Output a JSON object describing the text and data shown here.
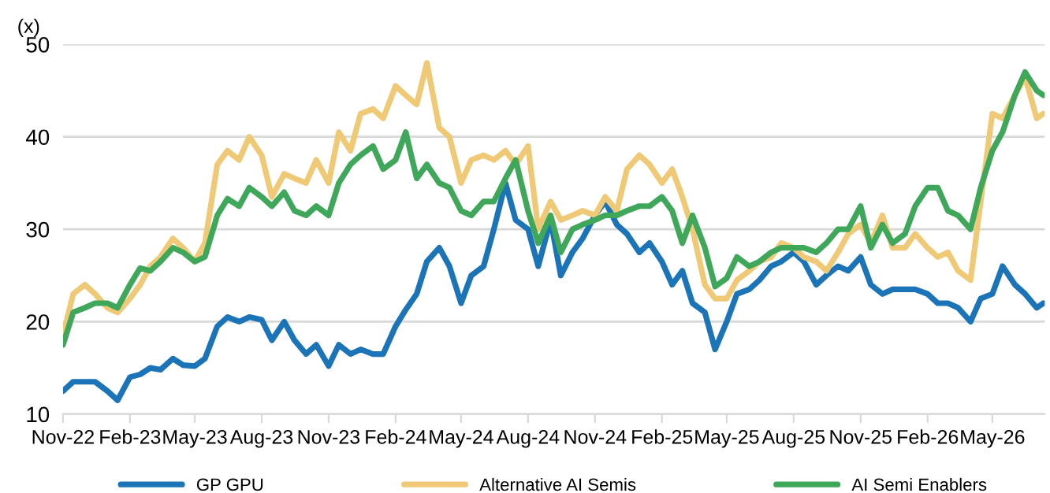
{
  "chart_data": {
    "type": "line",
    "ylabel": "(x)",
    "x": [
      "2022-11-01",
      "2022-11-15",
      "2022-12-01",
      "2022-12-15",
      "2023-01-01",
      "2023-01-15",
      "2023-02-01",
      "2023-02-15",
      "2023-03-01",
      "2023-03-15",
      "2023-04-01",
      "2023-04-15",
      "2023-05-01",
      "2023-05-15",
      "2023-06-01",
      "2023-06-15",
      "2023-07-01",
      "2023-07-15",
      "2023-08-01",
      "2023-08-15",
      "2023-09-01",
      "2023-09-15",
      "2023-10-01",
      "2023-10-15",
      "2023-11-01",
      "2023-11-15",
      "2023-12-01",
      "2023-12-15",
      "2024-01-01",
      "2024-01-15",
      "2024-02-01",
      "2024-02-15",
      "2024-03-01",
      "2024-03-15",
      "2024-04-01",
      "2024-04-15",
      "2024-05-01",
      "2024-05-15",
      "2024-06-01",
      "2024-06-15",
      "2024-07-01",
      "2024-07-15",
      "2024-08-01",
      "2024-08-15",
      "2024-09-01",
      "2024-09-15",
      "2024-10-01",
      "2024-10-15",
      "2024-11-01",
      "2024-11-15",
      "2024-12-01",
      "2024-12-15",
      "2025-01-01",
      "2025-01-15",
      "2025-02-01",
      "2025-02-15",
      "2025-03-01",
      "2025-03-15",
      "2025-04-01",
      "2025-04-15",
      "2025-05-01",
      "2025-05-15",
      "2025-06-01",
      "2025-06-15",
      "2025-07-01",
      "2025-07-15",
      "2025-08-01",
      "2025-08-15",
      "2025-09-01",
      "2025-09-15",
      "2025-10-01",
      "2025-10-15",
      "2025-11-01",
      "2025-11-15",
      "2025-12-01",
      "2025-12-15",
      "2026-01-01",
      "2026-01-15",
      "2026-02-01",
      "2026-02-15",
      "2026-03-01",
      "2026-03-15",
      "2026-04-01",
      "2026-04-15",
      "2026-05-01",
      "2026-05-15",
      "2026-06-01",
      "2026-06-15",
      "2026-07-01",
      "2026-07-10"
    ],
    "series": [
      {
        "name": "GP GPU",
        "color": "#1a74b7",
        "values": [
          12.5,
          13.5,
          13.5,
          13.5,
          12.5,
          11.5,
          14,
          14.3,
          15,
          14.8,
          16,
          15.3,
          15.2,
          16,
          19.5,
          20.5,
          20,
          20.5,
          20.2,
          18,
          20,
          18,
          16.5,
          17.5,
          15.2,
          17.5,
          16.5,
          17,
          16.5,
          16.5,
          19.5,
          21.3,
          23,
          26.5,
          28,
          26,
          22,
          25,
          26,
          30,
          35,
          31,
          30,
          26,
          31,
          25,
          27.5,
          29,
          31.5,
          33,
          30.5,
          29.5,
          27.5,
          28.5,
          26.5,
          24,
          25.5,
          22,
          21,
          17,
          20,
          23,
          23.5,
          24.5,
          26,
          26.5,
          27.5,
          26.5,
          24,
          25,
          26,
          25.5,
          27,
          24,
          23,
          23.5,
          23.5,
          23.5,
          23,
          22,
          22,
          21.5,
          20,
          22.5,
          23,
          26,
          24,
          23,
          21.5,
          22
        ]
      },
      {
        "name": "Alternative AI Semis",
        "color": "#f0c977",
        "values": [
          18.5,
          23,
          24,
          23,
          21.5,
          21,
          22.5,
          24,
          26,
          27,
          29,
          28,
          26.5,
          28.5,
          37,
          38.5,
          37.5,
          40,
          38,
          33.5,
          36,
          35.5,
          35,
          37.5,
          35,
          40.5,
          38.5,
          42.5,
          43,
          42,
          45.5,
          44.5,
          43.5,
          48,
          41,
          40,
          35,
          37.5,
          38,
          37.5,
          38.5,
          37,
          39,
          30,
          33,
          31,
          31.5,
          32,
          31.5,
          33.5,
          32,
          36.5,
          38,
          37,
          35,
          36.5,
          33.5,
          30,
          24,
          22.5,
          22.5,
          24.5,
          25.5,
          26.5,
          27,
          28.5,
          28,
          27,
          26.5,
          25.5,
          27.5,
          29.5,
          30.5,
          28.5,
          31.5,
          28,
          28,
          29.5,
          28,
          27,
          27.5,
          25.5,
          24.5,
          33,
          42.5,
          42,
          44.5,
          46.5,
          42,
          42.5
        ]
      },
      {
        "name": "AI Semi Enablers",
        "color": "#3fa75a",
        "values": [
          17.5,
          21,
          21.5,
          22,
          22,
          21.5,
          24,
          25.8,
          25.5,
          26.5,
          28,
          27.5,
          26.5,
          27,
          31.5,
          33.3,
          32.5,
          34.5,
          33.5,
          32.5,
          34,
          32,
          31.5,
          32.5,
          31.5,
          35,
          37,
          38,
          39,
          36.5,
          37.5,
          40.5,
          35.5,
          37,
          35,
          34.5,
          32,
          31.5,
          33,
          33,
          35.5,
          37.5,
          32,
          28.5,
          31.5,
          27.5,
          30,
          30.5,
          31,
          31.5,
          31.5,
          32,
          32.5,
          32.5,
          33.5,
          32,
          28.5,
          31.5,
          28,
          23.8,
          24.7,
          27,
          26,
          26.5,
          27.5,
          28,
          28,
          28,
          27.5,
          28.5,
          30,
          30,
          32.5,
          28,
          30.5,
          28.5,
          29.5,
          32.5,
          34.5,
          34.5,
          32,
          31.5,
          30,
          34.5,
          38.5,
          40.5,
          44.5,
          47,
          45,
          44.5
        ]
      }
    ],
    "xlim": [
      "2022-11-01",
      "2026-07-12"
    ],
    "xticks": [
      {
        "value": "2022-11-01",
        "label": "Nov-22"
      },
      {
        "value": "2023-02-01",
        "label": "Feb-23"
      },
      {
        "value": "2023-05-01",
        "label": "May-23"
      },
      {
        "value": "2023-08-01",
        "label": "Aug-23"
      },
      {
        "value": "2023-11-01",
        "label": "Nov-23"
      },
      {
        "value": "2024-02-01",
        "label": "Feb-24"
      },
      {
        "value": "2024-05-01",
        "label": "May-24"
      },
      {
        "value": "2024-08-01",
        "label": "Aug-24"
      },
      {
        "value": "2024-11-01",
        "label": "Nov-24"
      },
      {
        "value": "2025-02-01",
        "label": "Feb-25"
      },
      {
        "value": "2025-05-01",
        "label": "May-25"
      },
      {
        "value": "2025-08-01",
        "label": "Aug-25"
      },
      {
        "value": "2025-11-01",
        "label": "Nov-25"
      },
      {
        "value": "2026-02-01",
        "label": "Feb-26"
      },
      {
        "value": "2026-05-01",
        "label": "May-26"
      }
    ],
    "ylim": [
      10,
      50
    ],
    "yticks": [
      10,
      20,
      30,
      40,
      50
    ],
    "grid": "y",
    "legend": "bottom",
    "marker": "none",
    "line_style": "solid"
  }
}
